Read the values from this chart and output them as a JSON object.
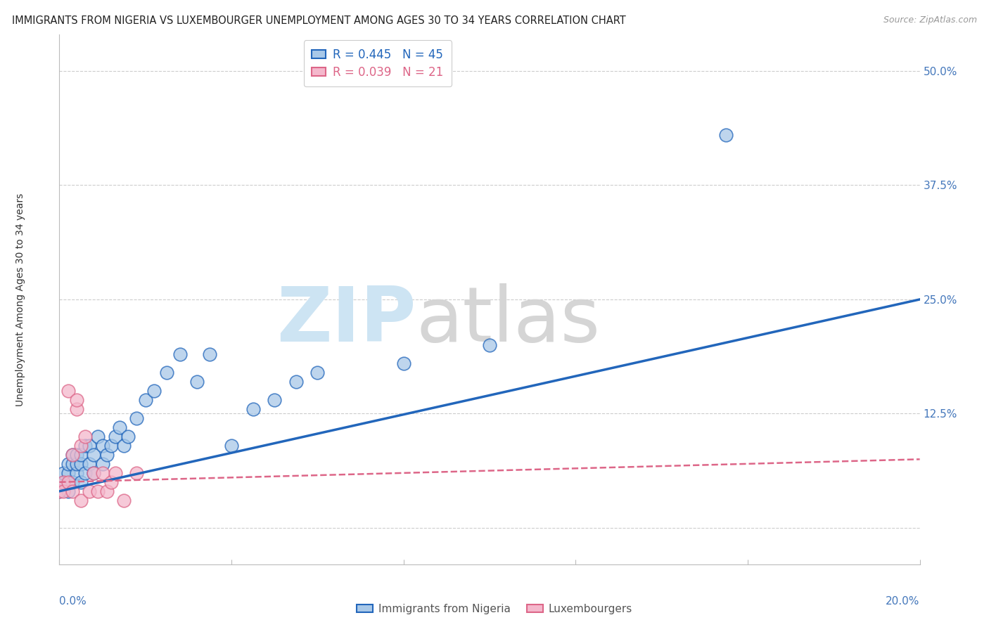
{
  "title": "IMMIGRANTS FROM NIGERIA VS LUXEMBOURGER UNEMPLOYMENT AMONG AGES 30 TO 34 YEARS CORRELATION CHART",
  "source": "Source: ZipAtlas.com",
  "ylabel": "Unemployment Among Ages 30 to 34 years",
  "xlim": [
    0,
    0.2
  ],
  "ylim": [
    -0.04,
    0.54
  ],
  "color_blue": "#a8c8e8",
  "color_pink": "#f4b8cc",
  "color_blue_line": "#2266bb",
  "color_pink_line": "#dd6688",
  "blue_points_x": [
    0.0,
    0.001,
    0.001,
    0.002,
    0.002,
    0.002,
    0.003,
    0.003,
    0.003,
    0.004,
    0.004,
    0.004,
    0.005,
    0.005,
    0.005,
    0.006,
    0.006,
    0.007,
    0.007,
    0.008,
    0.008,
    0.009,
    0.01,
    0.01,
    0.011,
    0.012,
    0.013,
    0.014,
    0.015,
    0.016,
    0.018,
    0.02,
    0.022,
    0.025,
    0.028,
    0.032,
    0.035,
    0.04,
    0.045,
    0.05,
    0.055,
    0.06,
    0.08,
    0.1,
    0.155
  ],
  "blue_points_y": [
    0.04,
    0.05,
    0.06,
    0.04,
    0.06,
    0.07,
    0.05,
    0.07,
    0.08,
    0.06,
    0.07,
    0.08,
    0.05,
    0.07,
    0.08,
    0.06,
    0.09,
    0.07,
    0.09,
    0.06,
    0.08,
    0.1,
    0.07,
    0.09,
    0.08,
    0.09,
    0.1,
    0.11,
    0.09,
    0.1,
    0.12,
    0.14,
    0.15,
    0.17,
    0.19,
    0.16,
    0.19,
    0.09,
    0.13,
    0.14,
    0.16,
    0.17,
    0.18,
    0.2,
    0.43
  ],
  "pink_points_x": [
    0.0,
    0.001,
    0.001,
    0.002,
    0.002,
    0.003,
    0.003,
    0.004,
    0.004,
    0.005,
    0.005,
    0.006,
    0.007,
    0.008,
    0.009,
    0.01,
    0.011,
    0.012,
    0.013,
    0.015,
    0.018
  ],
  "pink_points_y": [
    0.04,
    0.05,
    0.04,
    0.15,
    0.05,
    0.08,
    0.04,
    0.13,
    0.14,
    0.09,
    0.03,
    0.1,
    0.04,
    0.06,
    0.04,
    0.06,
    0.04,
    0.05,
    0.06,
    0.03,
    0.06
  ],
  "blue_line_x0": 0.0,
  "blue_line_y0": 0.04,
  "blue_line_x1": 0.2,
  "blue_line_y1": 0.25,
  "pink_line_x0": 0.0,
  "pink_line_y0": 0.05,
  "pink_line_x1": 0.2,
  "pink_line_y1": 0.075
}
